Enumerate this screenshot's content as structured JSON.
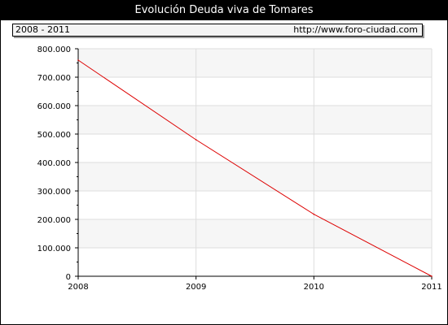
{
  "header": {
    "title": "Evolución Deuda viva de Tomares",
    "range": "2008 - 2011",
    "url": "http://www.foro-ciudad.com"
  },
  "colors": {
    "line": "#dd0000",
    "band": "#f6f6f6",
    "grid": "#dddddd"
  },
  "chart_data": {
    "type": "line",
    "title": "Evolución Deuda viva de Tomares",
    "x": [
      2008,
      2009,
      2010,
      2011
    ],
    "x_tick_labels": [
      "2008",
      "2009",
      "2010",
      "2011"
    ],
    "series": [
      {
        "values": [
          760000,
          480000,
          218000,
          0
        ]
      }
    ],
    "ylim": [
      0,
      800000
    ],
    "y_ticks": [
      0,
      100000,
      200000,
      300000,
      400000,
      500000,
      600000,
      700000,
      800000
    ],
    "y_tick_labels": [
      "0",
      "100.000",
      "200.000",
      "300.000",
      "400.000",
      "500.000",
      "600.000",
      "700.000",
      "800.000"
    ],
    "grid": true,
    "xlabel": "",
    "ylabel": ""
  }
}
